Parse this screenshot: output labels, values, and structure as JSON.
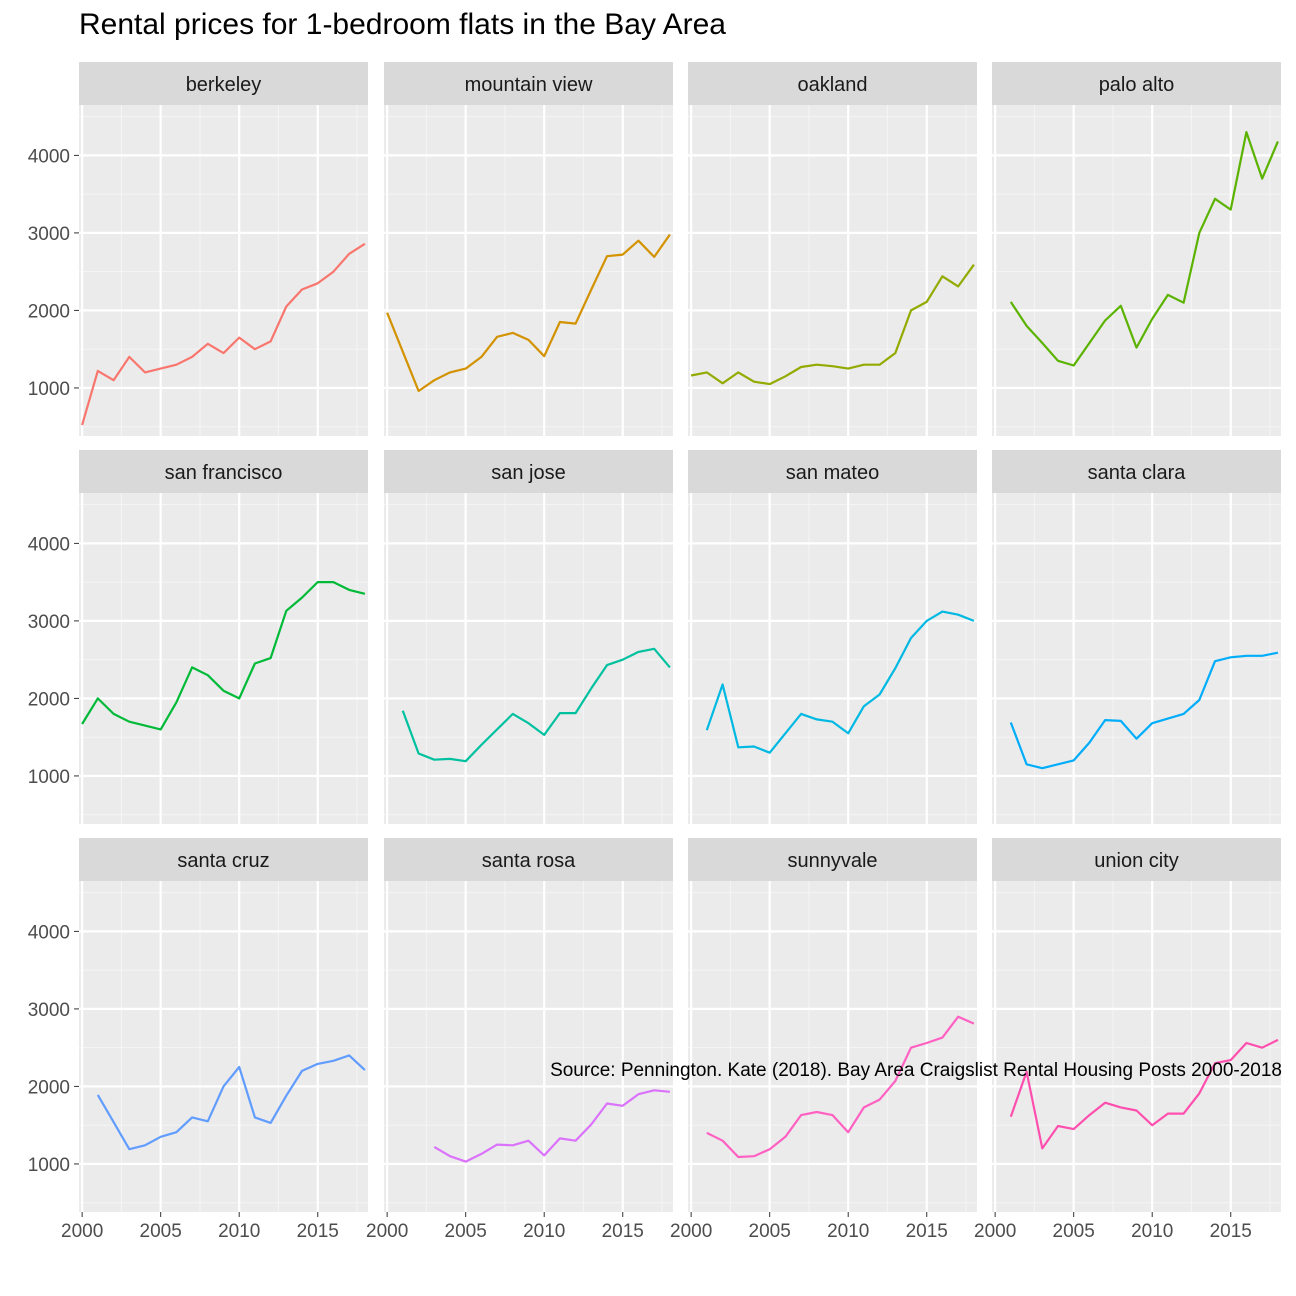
{
  "chart_data": {
    "type": "line",
    "title": "Rental prices for 1-bedroom flats in the Bay Area",
    "caption": "Source: Pennington. Kate (2018). Bay Area Craigslist Rental Housing Posts 2000-2018",
    "xlabel": "",
    "ylabel": "",
    "xlim": [
      1999.8,
      2018.2
    ],
    "ylim": [
      380,
      4650
    ],
    "x_ticks": [
      2000,
      2005,
      2010,
      2015
    ],
    "y_ticks": [
      1000,
      2000,
      3000,
      4000
    ],
    "facet_columns": 4,
    "grid": true,
    "legend": "none",
    "panels": [
      {
        "name": "berkeley",
        "color": "#F8766D",
        "x": [
          2000,
          2001,
          2002,
          2003,
          2004,
          2005,
          2006,
          2007,
          2008,
          2009,
          2010,
          2011,
          2012,
          2013,
          2014,
          2015,
          2016,
          2017,
          2018
        ],
        "y": [
          520,
          1220,
          1100,
          1400,
          1200,
          1250,
          1300,
          1400,
          1570,
          1450,
          1650,
          1500,
          1600,
          2050,
          2270,
          2350,
          2500,
          2730,
          2860
        ]
      },
      {
        "name": "mountain view",
        "color": "#D39200",
        "x": [
          2000,
          2002,
          2003,
          2004,
          2005,
          2006,
          2007,
          2008,
          2009,
          2010,
          2011,
          2012,
          2013,
          2014,
          2015,
          2016,
          2017,
          2018
        ],
        "y": [
          1970,
          960,
          1100,
          1200,
          1250,
          1400,
          1660,
          1710,
          1620,
          1410,
          1850,
          1830,
          2270,
          2700,
          2720,
          2900,
          2690,
          2980
        ]
      },
      {
        "name": "oakland",
        "color": "#93AA00",
        "x": [
          2000,
          2001,
          2002,
          2003,
          2004,
          2005,
          2006,
          2007,
          2008,
          2009,
          2010,
          2011,
          2012,
          2013,
          2014,
          2015,
          2016,
          2017,
          2018
        ],
        "y": [
          1160,
          1200,
          1060,
          1200,
          1080,
          1050,
          1150,
          1270,
          1300,
          1280,
          1250,
          1300,
          1300,
          1450,
          2000,
          2110,
          2440,
          2310,
          2590
        ]
      },
      {
        "name": "palo alto",
        "color": "#5BB300",
        "x": [
          2001,
          2002,
          2003,
          2004,
          2005,
          2006,
          2007,
          2008,
          2009,
          2010,
          2011,
          2012,
          2013,
          2014,
          2015,
          2016,
          2017,
          2018
        ],
        "y": [
          2110,
          1800,
          1580,
          1350,
          1290,
          1580,
          1870,
          2060,
          1520,
          1890,
          2200,
          2100,
          3000,
          3440,
          3300,
          4300,
          3700,
          4180
        ]
      },
      {
        "name": "san francisco",
        "color": "#00BA38",
        "x": [
          2000,
          2001,
          2002,
          2003,
          2005,
          2006,
          2007,
          2008,
          2009,
          2010,
          2011,
          2012,
          2013,
          2014,
          2015,
          2016,
          2017,
          2018
        ],
        "y": [
          1670,
          2000,
          1800,
          1700,
          1600,
          1950,
          2400,
          2300,
          2100,
          2000,
          2450,
          2520,
          3130,
          3300,
          3500,
          3500,
          3400,
          3350
        ]
      },
      {
        "name": "san jose",
        "color": "#00C19F",
        "x": [
          2001,
          2002,
          2003,
          2004,
          2005,
          2006,
          2007,
          2008,
          2009,
          2010,
          2011,
          2012,
          2013,
          2014,
          2015,
          2016,
          2017,
          2018
        ],
        "y": [
          1840,
          1290,
          1210,
          1220,
          1190,
          1400,
          1600,
          1800,
          1680,
          1530,
          1810,
          1810,
          2130,
          2430,
          2500,
          2600,
          2640,
          2400
        ]
      },
      {
        "name": "san mateo",
        "color": "#00B9E3",
        "x": [
          2001,
          2002,
          2003,
          2004,
          2005,
          2006,
          2007,
          2008,
          2009,
          2010,
          2011,
          2012,
          2013,
          2014,
          2015,
          2016,
          2017,
          2018
        ],
        "y": [
          1590,
          2180,
          1370,
          1380,
          1300,
          1550,
          1800,
          1730,
          1700,
          1550,
          1900,
          2050,
          2390,
          2780,
          3000,
          3120,
          3080,
          3000
        ]
      },
      {
        "name": "santa clara",
        "color": "#00ADFA",
        "x": [
          2001,
          2002,
          2003,
          2005,
          2006,
          2007,
          2008,
          2009,
          2010,
          2011,
          2012,
          2013,
          2014,
          2015,
          2016,
          2017,
          2018
        ],
        "y": [
          1690,
          1150,
          1100,
          1200,
          1430,
          1720,
          1710,
          1480,
          1680,
          1740,
          1800,
          1980,
          2480,
          2530,
          2550,
          2550,
          2590
        ]
      },
      {
        "name": "santa cruz",
        "color": "#619CFF",
        "x": [
          2001,
          2002,
          2003,
          2004,
          2005,
          2006,
          2007,
          2008,
          2009,
          2010,
          2011,
          2012,
          2013,
          2014,
          2015,
          2016,
          2017,
          2018
        ],
        "y": [
          1890,
          1540,
          1190,
          1240,
          1350,
          1410,
          1600,
          1550,
          2000,
          2250,
          1600,
          1530,
          1880,
          2200,
          2290,
          2330,
          2400,
          2210
        ]
      },
      {
        "name": "santa rosa",
        "color": "#DB72FB",
        "x": [
          2003,
          2004,
          2005,
          2006,
          2007,
          2008,
          2009,
          2010,
          2011,
          2012,
          2013,
          2014,
          2015,
          2016,
          2017,
          2018
        ],
        "y": [
          1220,
          1100,
          1030,
          1130,
          1250,
          1240,
          1300,
          1110,
          1330,
          1300,
          1510,
          1780,
          1750,
          1900,
          1950,
          1930
        ]
      },
      {
        "name": "sunnyvale",
        "color": "#FF61C3",
        "x": [
          2001,
          2002,
          2003,
          2004,
          2005,
          2006,
          2007,
          2008,
          2009,
          2010,
          2011,
          2012,
          2013,
          2014,
          2015,
          2016,
          2017,
          2018
        ],
        "y": [
          1400,
          1300,
          1090,
          1100,
          1190,
          1350,
          1630,
          1670,
          1630,
          1410,
          1730,
          1830,
          2070,
          2500,
          2560,
          2630,
          2900,
          2810
        ]
      },
      {
        "name": "union city",
        "color": "#FF4FAE",
        "x": [
          2001,
          2002,
          2003,
          2004,
          2005,
          2006,
          2007,
          2008,
          2009,
          2010,
          2011,
          2012,
          2013,
          2014,
          2015,
          2016,
          2017,
          2018
        ],
        "y": [
          1610,
          2190,
          1200,
          1490,
          1450,
          1630,
          1790,
          1730,
          1690,
          1500,
          1650,
          1650,
          1910,
          2300,
          2340,
          2560,
          2500,
          2600
        ]
      }
    ]
  }
}
